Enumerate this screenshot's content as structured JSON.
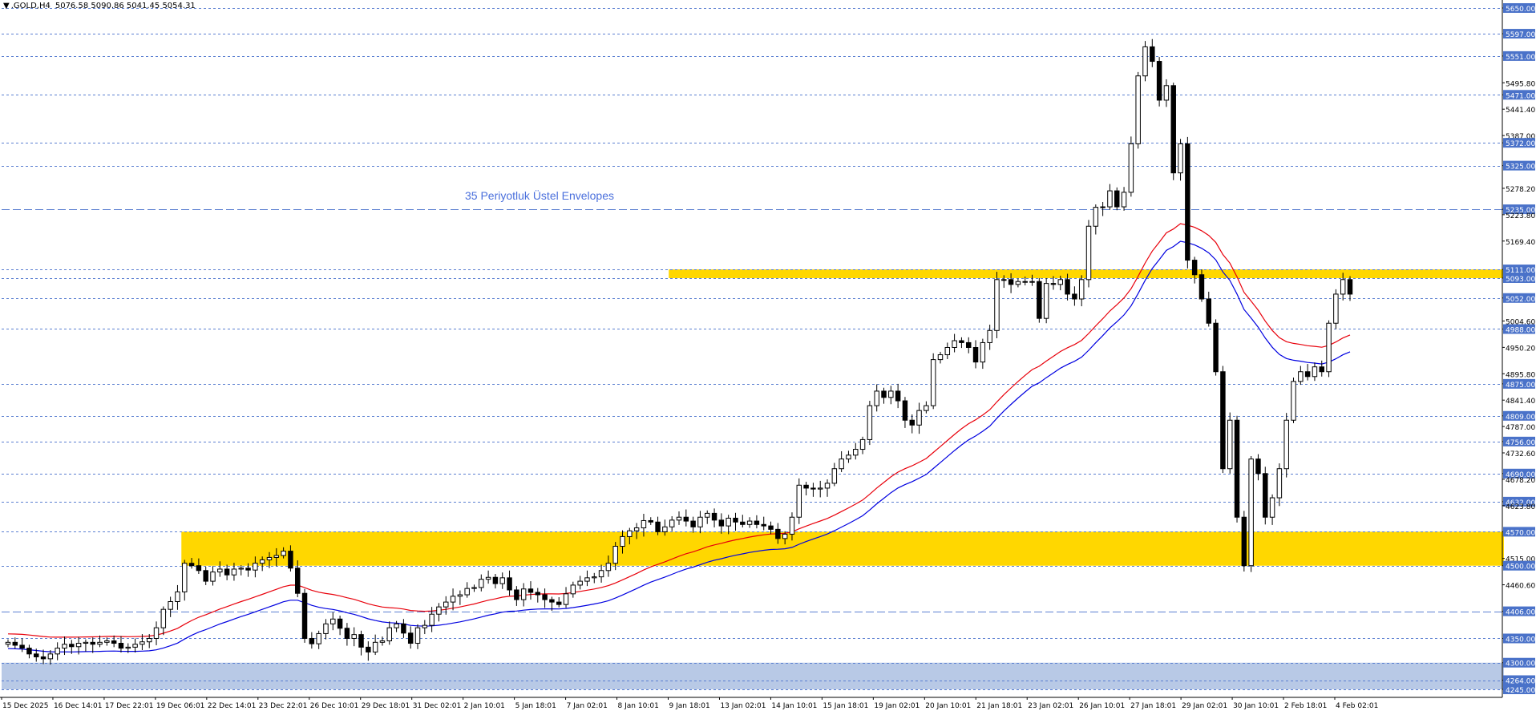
{
  "header": {
    "symbol": ".GOLD,H4",
    "ohlc": "5076.58 5090.86 5041.45 5054.31"
  },
  "annotation": {
    "text": "35 Periyotluk Üstel Envelopes",
    "color": "#4a6fdc"
  },
  "colors": {
    "background": "#ffffff",
    "candle_up_fill": "#ffffff",
    "candle_down_fill": "#000000",
    "candle_outline": "#000000",
    "envelope_upper": "#e8000b",
    "envelope_lower": "#0000e0",
    "level_line": "#5b7fd1",
    "level_label_bg": "#4a72c9",
    "zone_yellow": "#ffd700",
    "zone_blue": "#b8c9e6",
    "axis_text": "#000000"
  },
  "chart_data": {
    "type": "candlestick",
    "y_axis_range": [
      4240,
      5660
    ],
    "y_ticks": [
      5650.0,
      5597.0,
      5551.0,
      5495.8,
      5471.0,
      5441.4,
      5387.0,
      5372.0,
      5325.0,
      5278.2,
      5235.0,
      5223.8,
      5169.4,
      5111.0,
      5093.0,
      5052.0,
      5004.6,
      4988.0,
      4950.2,
      4895.8,
      4875.0,
      4841.4,
      4809.0,
      4787.0,
      4756.0,
      4732.6,
      4690.0,
      4678.2,
      4632.0,
      4623.8,
      4570.0,
      4515.0,
      4500.0,
      4460.6,
      4406.0,
      4350.0,
      4300.0,
      4264.0,
      4245.0
    ],
    "highlighted_levels": [
      5650.0,
      5597.0,
      5551.0,
      5471.0,
      5372.0,
      5325.0,
      5235.0,
      5111.0,
      5093.0,
      5052.0,
      4988.0,
      4875.0,
      4809.0,
      4756.0,
      4690.0,
      4632.0,
      4570.0,
      4500.0,
      4406.0,
      4350.0,
      4300.0,
      4264.0,
      4245.0
    ],
    "plain_ticks": [
      5495.8,
      5441.4,
      5387.0,
      5278.2,
      5223.8,
      5169.4,
      5004.6,
      4950.2,
      4895.8,
      4841.4,
      4787.0,
      4732.6,
      4678.2,
      4623.8,
      4515.0,
      4460.6
    ],
    "dashed_levels_long": [
      5235.0,
      4406.0
    ],
    "zones": [
      {
        "from": 5093.0,
        "to": 5111.0,
        "color": "#ffd700",
        "start_index": 94
      },
      {
        "from": 4500.0,
        "to": 4570.0,
        "color": "#ffd700",
        "start_index": 25
      },
      {
        "from": 4245.0,
        "to": 4300.0,
        "color": "#b8c9e6",
        "start_index": 0
      }
    ],
    "x_labels": [
      "15 Dec 2025",
      "16 Dec 14:01",
      "17 Dec 22:01",
      "19 Dec 06:01",
      "22 Dec 14:01",
      "23 Dec 22:01",
      "26 Dec 10:01",
      "29 Dec 18:01",
      "31 Dec 02:01",
      "2 Jan 10:01",
      "5 Jan 18:01",
      "7 Jan 02:01",
      "8 Jan 10:01",
      "9 Jan 18:01",
      "13 Jan 02:01",
      "14 Jan 10:01",
      "15 Jan 18:01",
      "19 Jan 02:01",
      "20 Jan 10:01",
      "21 Jan 18:01",
      "23 Jan 02:01",
      "26 Jan 10:01",
      "27 Jan 18:01",
      "29 Jan 02:01",
      "30 Jan 10:01",
      "2 Feb 18:01",
      "4 Feb 02:01"
    ],
    "closes": [
      4342,
      4336,
      4330,
      4318,
      4312,
      4308,
      4318,
      4330,
      4338,
      4333,
      4340,
      4342,
      4338,
      4342,
      4345,
      4340,
      4330,
      4332,
      4338,
      4343,
      4350,
      4372,
      4410,
      4426,
      4446,
      4505,
      4500,
      4490,
      4468,
      4487,
      4493,
      4481,
      4493,
      4495,
      4491,
      4505,
      4512,
      4517,
      4521,
      4530,
      4495,
      4443,
      4350,
      4339,
      4360,
      4380,
      4390,
      4371,
      4350,
      4358,
      4332,
      4322,
      4342,
      4345,
      4372,
      4380,
      4361,
      4340,
      4372,
      4377,
      4400,
      4415,
      4425,
      4437,
      4440,
      4453,
      4455,
      4472,
      4476,
      4463,
      4475,
      4450,
      4430,
      4452,
      4445,
      4440,
      4430,
      4425,
      4420,
      4442,
      4460,
      4468,
      4475,
      4477,
      4490,
      4505,
      4540,
      4560,
      4572,
      4578,
      4593,
      4590,
      4570,
      4580,
      4594,
      4600,
      4592,
      4580,
      4600,
      4608,
      4594,
      4582,
      4598,
      4590,
      4585,
      4592,
      4585,
      4582,
      4575,
      4556,
      4565,
      4600,
      4666,
      4660,
      4658,
      4660,
      4670,
      4700,
      4720,
      4728,
      4740,
      4760,
      4830,
      4860,
      4847,
      4860,
      4840,
      4800,
      4790,
      4820,
      4830,
      4925,
      4935,
      4950,
      4964,
      4960,
      4950,
      4920,
      4960,
      4985,
      5090,
      5090,
      5080,
      5086,
      5085,
      5086,
      5010,
      5082,
      5080,
      5090,
      5060,
      5050,
      5090,
      5200,
      5239,
      5240,
      5273,
      5240,
      5270,
      5370,
      5510,
      5570,
      5540,
      5460,
      5490,
      5310,
      5370,
      5130,
      5100,
      5050,
      5000,
      4900,
      4700,
      4800,
      4600,
      4500,
      4720,
      4690,
      4600,
      4640,
      4700,
      4800,
      4880,
      4900,
      4890,
      4910,
      4900,
      5000,
      5060,
      5090,
      5060
    ],
    "envelope_upper_y_at_end": 5000,
    "envelope_lower_y_at_end": 4955
  }
}
